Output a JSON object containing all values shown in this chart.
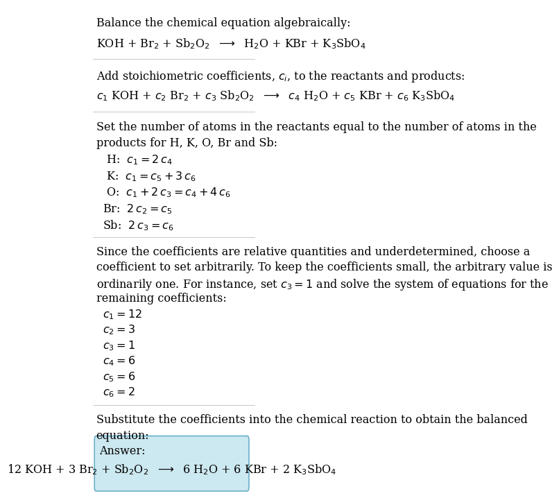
{
  "title_line": "Balance the chemical equation algebraically:",
  "equation_line": "KOH + Br$_2$ + Sb$_2$O$_2$  $\\longrightarrow$  H$_2$O + KBr + K$_3$SbO$_4$",
  "section2_intro": "Add stoichiometric coefficients, $c_i$, to the reactants and products:",
  "equation2_line": "$c_1$ KOH + $c_2$ Br$_2$ + $c_3$ Sb$_2$O$_2$  $\\longrightarrow$  $c_4$ H$_2$O + $c_5$ KBr + $c_6$ K$_3$SbO$_4$",
  "section3_intro1": "Set the number of atoms in the reactants equal to the number of atoms in the",
  "section3_intro2": "products for H, K, O, Br and Sb:",
  "equations": [
    " H:  $c_1 = 2\\,c_4$",
    " K:  $c_1 = c_5 + 3\\,c_6$",
    " O:  $c_1 + 2\\,c_3 = c_4 + 4\\,c_6$",
    "Br:  $2\\,c_2 = c_5$",
    "Sb:  $2\\,c_3 = c_6$"
  ],
  "section4_intro1": "Since the coefficients are relative quantities and underdetermined, choose a",
  "section4_intro2": "coefficient to set arbitrarily. To keep the coefficients small, the arbitrary value is",
  "section4_intro3": "ordinarily one. For instance, set $c_3 = 1$ and solve the system of equations for the",
  "section4_intro4": "remaining coefficients:",
  "coeff_lines": [
    "$c_1 = 12$",
    "$c_2 = 3$",
    "$c_3 = 1$",
    "$c_4 = 6$",
    "$c_5 = 6$",
    "$c_6 = 2$"
  ],
  "section5_intro1": "Substitute the coefficients into the chemical reaction to obtain the balanced",
  "section5_intro2": "equation:",
  "answer_label": "Answer:",
  "answer_equation": "12 KOH + 3 Br$_2$ + Sb$_2$O$_2$  $\\longrightarrow$  6 H$_2$O + 6 KBr + 2 K$_3$SbO$_4$",
  "bg_color": "#ffffff",
  "text_color": "#000000",
  "box_color": "#cce8f0",
  "box_border": "#6ab0c8",
  "hr_color": "#cccccc",
  "fontsize": 11.5
}
